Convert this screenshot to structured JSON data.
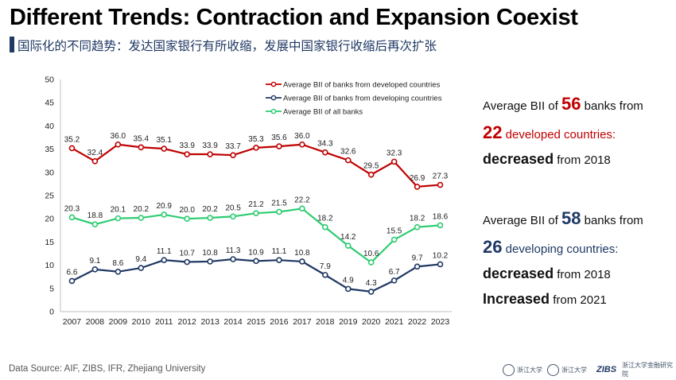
{
  "header": {
    "title": "Different Trends: Contraction and Expansion Coexist",
    "subtitle": "国际化的不同趋势：发达国家银行有所收缩，发展中国家银行收缩后再次扩张"
  },
  "chart_data": {
    "type": "line",
    "x": [
      "2007",
      "2008",
      "2009",
      "2010",
      "2011",
      "2012",
      "2013",
      "2014",
      "2015",
      "2016",
      "2017",
      "2018",
      "2019",
      "2020",
      "2021",
      "2022",
      "2023"
    ],
    "ylim": [
      0,
      50
    ],
    "yticks": [
      "0",
      "5",
      "10",
      "15",
      "20",
      "25",
      "30",
      "35",
      "40",
      "45",
      "50"
    ],
    "grid": false,
    "legend_position": "top-right",
    "series": [
      {
        "name": "Average BII of banks from developed countries",
        "color": "#c00000",
        "values": [
          35.2,
          32.4,
          36.0,
          35.4,
          35.1,
          33.9,
          33.9,
          33.7,
          35.3,
          35.6,
          36.0,
          34.3,
          32.6,
          29.5,
          32.3,
          26.9,
          27.3
        ],
        "labels": [
          "35.2",
          "32.4",
          "36.0",
          "35.4",
          "35.1",
          "33.9",
          "33.9",
          "33.7",
          "35.3",
          "35.6",
          "36.0",
          "34.3",
          "32.6",
          "29.5",
          "32.3",
          "26.9",
          "27.3"
        ]
      },
      {
        "name": "Average BII of banks from developing countries",
        "color": "#1f3864",
        "values": [
          6.6,
          9.1,
          8.6,
          9.4,
          11.1,
          10.7,
          10.8,
          11.3,
          10.9,
          11.1,
          10.8,
          7.9,
          4.9,
          4.3,
          6.7,
          9.7,
          10.2
        ],
        "labels": [
          "6.6",
          "9.1",
          "8.6",
          "9.4",
          "11.1",
          "10.7",
          "10.8",
          "11.3",
          "10.9",
          "11.1",
          "10.8",
          "7.9",
          "4.9",
          "4.3",
          "6.7",
          "9.7",
          "10.2"
        ]
      },
      {
        "name": "Average BII of all banks",
        "color": "#2ecc71",
        "values": [
          20.3,
          18.8,
          20.1,
          20.2,
          20.9,
          20.0,
          20.2,
          20.5,
          21.2,
          21.5,
          22.2,
          18.2,
          14.2,
          10.6,
          15.5,
          18.2,
          18.6
        ],
        "labels": [
          "20.3",
          "18.8",
          "20.1",
          "20.2",
          "20.9",
          "20.0",
          "20.2",
          "20.5",
          "21.2",
          "21.5",
          "22.2",
          "18.2",
          "14.2",
          "10.6",
          "15.5",
          "18.2",
          "18.6"
        ]
      }
    ]
  },
  "panel": {
    "l1_pre": "Average BII of ",
    "l1_num": "56",
    "l1_post": " banks from",
    "l2_num": "22",
    "l2_post": " developed countries:",
    "l3_bold": "decreased",
    "l3_post": " from 2018",
    "l4_pre": "Average BII of ",
    "l4_num": "58",
    "l4_post": " banks from",
    "l5_num": "26",
    "l5_post": " developing countries:",
    "l6_bold": "decreased",
    "l6_post": " from 2018",
    "l7_bold": "Increased",
    "l7_post": " from 2021"
  },
  "footer": {
    "source": "Data Source: AIF, ZIBS, IFR, Zhejiang University",
    "logo1": "浙江大学",
    "logo2": "浙江大学",
    "logo3": "ZIBS",
    "logo4": "浙江大学金融研究院"
  }
}
